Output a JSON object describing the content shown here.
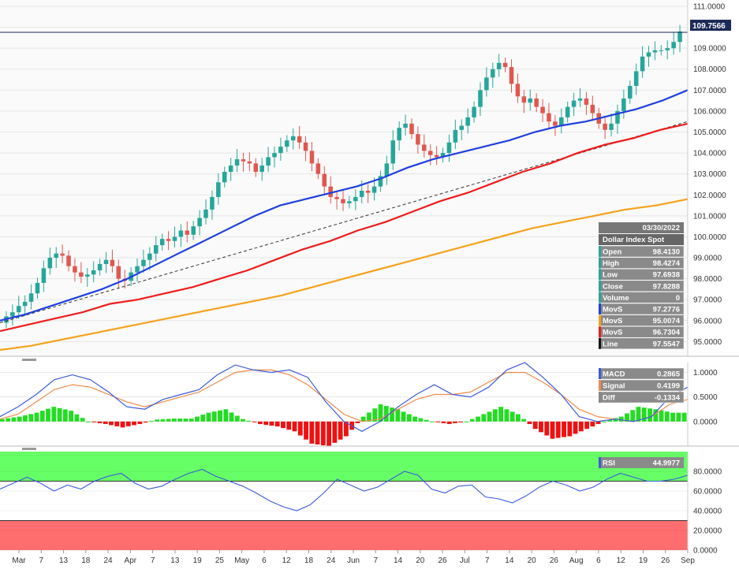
{
  "instrument": "Dollar Index Spot",
  "current_price_label": "109.7566",
  "colors": {
    "background": "#ffffff",
    "panel_grid": "#e6e6e6",
    "up_candle": "#26a69a",
    "down_candle": "#e0574f",
    "ma_blue": "#1f3fe0",
    "ma_red": "#ee1c1c",
    "ma_orange": "#f5a21b",
    "trend_line": "#333333",
    "macd_line": "#3b5bdb",
    "signal_line": "#f08a4b",
    "hist_pos": "#22dd22",
    "hist_neg": "#ee1111",
    "rsi_line": "#3b5bdb",
    "overbought_zone": "#66ff66",
    "oversold_zone": "#ff6e6e",
    "infobox_header": "#777777",
    "infobox_row": "#8a8a8a"
  },
  "infobox": {
    "date": "03/30/2022",
    "title": "Dollar Index Spot",
    "rows": [
      {
        "label": "Open",
        "value": "98.4130",
        "swatch": "#26a69a"
      },
      {
        "label": "High",
        "value": "98.4274",
        "swatch": "#26a69a"
      },
      {
        "label": "Low",
        "value": "97.6938",
        "swatch": "#26a69a"
      },
      {
        "label": "Close",
        "value": "97.8288",
        "swatch": "#26a69a"
      },
      {
        "label": "Volume",
        "value": "0",
        "swatch": "#26a69a"
      },
      {
        "label": "MovS",
        "value": "97.2776",
        "swatch": "#1f3fe0"
      },
      {
        "label": "MovS",
        "value": "95.0074",
        "swatch": "#f5a21b"
      },
      {
        "label": "MovS",
        "value": "96.7304",
        "swatch": "#ee1c1c"
      },
      {
        "label": "Line",
        "value": "97.5547",
        "swatch": "#111111"
      }
    ]
  },
  "macd_box": {
    "rows": [
      {
        "label": "MACD",
        "value": "0.2865",
        "swatch": "#3b5bdb"
      },
      {
        "label": "Signal",
        "value": "0.4199",
        "swatch": "#f08a4b"
      },
      {
        "label": "Diff",
        "value": "-0.1334",
        "swatch": "#888888"
      }
    ]
  },
  "rsi_box": {
    "label": "RSI",
    "value": "44.9977",
    "swatch": "#3b5bdb"
  },
  "chart_data": {
    "type": "candlestick",
    "x_tick_labels": [
      "Mar",
      "7",
      "13",
      "18",
      "24",
      "Apr",
      "7",
      "13",
      "19",
      "25",
      "May",
      "6",
      "12",
      "18",
      "24",
      "Jun",
      "7",
      "14",
      "20",
      "26",
      "Jul",
      "7",
      "14",
      "20",
      "26",
      "Aug",
      "6",
      "12",
      "19",
      "26",
      "Sep"
    ],
    "price_axis": {
      "ylim": [
        94.3,
        111.3
      ],
      "ticks": [
        "95.0000",
        "96.0000",
        "97.0000",
        "98.0000",
        "99.0000",
        "100.0000",
        "101.0000",
        "102.0000",
        "103.0000",
        "104.0000",
        "105.0000",
        "106.0000",
        "107.0000",
        "108.0000",
        "109.0000",
        "110.0000",
        "111.0000"
      ]
    },
    "price_close_series": [
      96.2,
      96.4,
      96.7,
      96.9,
      97.3,
      97.8,
      98.5,
      99.0,
      99.2,
      99.1,
      98.6,
      98.3,
      98.1,
      98.2,
      98.4,
      98.7,
      98.9,
      98.6,
      98.0,
      97.9,
      98.3,
      98.6,
      98.9,
      99.2,
      99.6,
      99.9,
      99.8,
      100.0,
      100.3,
      100.1,
      100.5,
      100.9,
      101.3,
      101.9,
      102.6,
      103.1,
      103.4,
      103.7,
      103.6,
      103.5,
      103.1,
      103.4,
      103.8,
      104.0,
      104.3,
      104.6,
      104.8,
      104.5,
      104.1,
      103.5,
      103.0,
      102.4,
      101.9,
      101.8,
      101.6,
      101.7,
      101.9,
      102.2,
      102.1,
      102.4,
      102.9,
      103.5,
      104.6,
      105.2,
      105.4,
      104.9,
      104.4,
      104.1,
      103.9,
      103.8,
      104.0,
      104.5,
      105.1,
      105.3,
      105.7,
      106.2,
      107.0,
      107.6,
      108.0,
      108.3,
      108.1,
      107.3,
      106.7,
      106.4,
      106.6,
      106.2,
      105.9,
      105.5,
      105.3,
      105.7,
      106.2,
      106.5,
      106.6,
      106.3,
      105.9,
      105.4,
      105.1,
      105.4,
      106.0,
      106.6,
      107.2,
      107.9,
      108.6,
      108.8,
      108.9,
      108.9,
      109.0,
      109.3,
      109.8
    ],
    "ma_blue_series": [
      96.0,
      96.3,
      96.7,
      97.1,
      97.5,
      98.0,
      98.6,
      99.2,
      99.8,
      100.4,
      101.0,
      101.5,
      101.8,
      102.1,
      102.4,
      102.8,
      103.3,
      103.7,
      104.0,
      104.3,
      104.6,
      105.0,
      105.3,
      105.5,
      105.8,
      106.1,
      106.5,
      107.0
    ],
    "ma_red_series": [
      95.5,
      95.8,
      96.1,
      96.4,
      96.8,
      97.0,
      97.3,
      97.6,
      98.0,
      98.4,
      98.9,
      99.4,
      99.8,
      100.3,
      100.7,
      101.2,
      101.7,
      102.1,
      102.6,
      103.1,
      103.5,
      104.0,
      104.4,
      104.7,
      105.1,
      105.4
    ],
    "ma_orange_series": [
      94.6,
      94.8,
      95.1,
      95.4,
      95.7,
      96.0,
      96.3,
      96.6,
      96.9,
      97.2,
      97.6,
      98.0,
      98.4,
      98.8,
      99.2,
      99.6,
      100.0,
      100.4,
      100.7,
      101.0,
      101.3,
      101.5,
      101.8
    ],
    "macd": {
      "ylim": [
        -0.5,
        1.2
      ],
      "ticks": [
        "0.0000",
        "0.5000",
        "1.0000"
      ],
      "macd_series": [
        0.1,
        0.3,
        0.55,
        0.85,
        0.95,
        0.85,
        0.6,
        0.3,
        0.25,
        0.45,
        0.55,
        0.65,
        0.95,
        1.15,
        1.05,
        1.0,
        1.05,
        0.9,
        0.4,
        0.0,
        -0.2,
        0.0,
        0.3,
        0.55,
        0.75,
        0.55,
        0.5,
        0.7,
        1.05,
        1.2,
        0.9,
        0.55,
        0.1,
        0.0,
        0.05,
        0.0,
        0.1,
        0.5,
        0.7
      ],
      "signal_series": [
        0.05,
        0.15,
        0.4,
        0.65,
        0.75,
        0.7,
        0.55,
        0.4,
        0.3,
        0.4,
        0.5,
        0.6,
        0.8,
        1.0,
        1.05,
        1.05,
        0.95,
        0.75,
        0.45,
        0.15,
        0.0,
        0.05,
        0.25,
        0.45,
        0.55,
        0.55,
        0.6,
        0.8,
        1.0,
        1.0,
        0.8,
        0.55,
        0.25,
        0.1,
        0.05,
        0.0,
        0.1,
        0.35,
        0.45
      ],
      "hist_series": [
        0.05,
        0.1,
        0.18,
        0.3,
        0.22,
        0.0,
        -0.05,
        -0.12,
        -0.05,
        0.04,
        0.06,
        0.06,
        0.18,
        0.25,
        0.05,
        -0.05,
        -0.1,
        -0.2,
        -0.45,
        -0.5,
        -0.3,
        0.1,
        0.35,
        0.25,
        0.1,
        0.0,
        -0.05,
        0.0,
        0.15,
        0.3,
        0.15,
        -0.15,
        -0.35,
        -0.3,
        -0.15,
        0.0,
        0.1,
        0.3,
        0.25,
        0.18
      ]
    },
    "rsi": {
      "ylim": [
        0,
        100
      ],
      "ticks": [
        "0.0000",
        "20.0000",
        "40.0000",
        "60.0000",
        "80.0000"
      ],
      "overbought": 70,
      "oversold": 30,
      "series": [
        62,
        68,
        74,
        68,
        60,
        66,
        62,
        70,
        75,
        78,
        68,
        62,
        65,
        72,
        78,
        82,
        75,
        70,
        65,
        58,
        50,
        44,
        40,
        46,
        58,
        72,
        66,
        60,
        64,
        72,
        80,
        76,
        62,
        58,
        65,
        66,
        54,
        52,
        48,
        55,
        64,
        70,
        66,
        60,
        64,
        72,
        78,
        74,
        70,
        70,
        72,
        76
      ]
    }
  }
}
